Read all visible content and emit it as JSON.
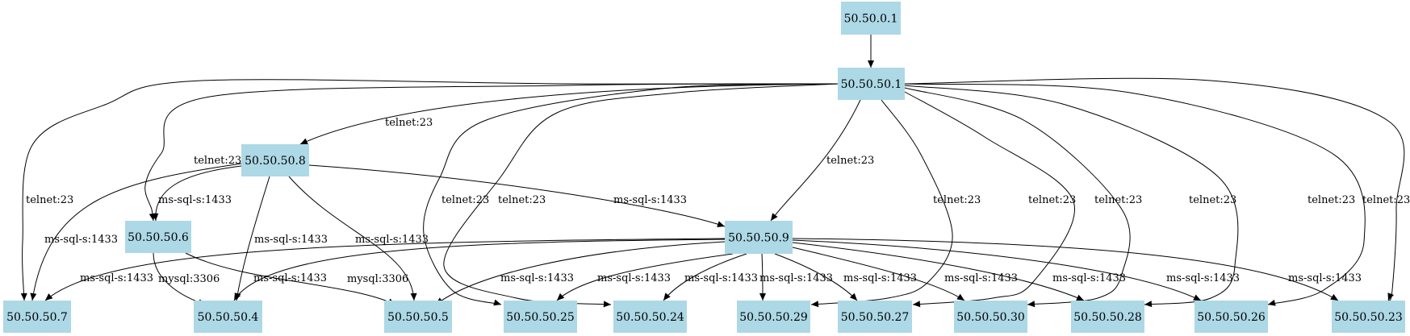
{
  "graph": {
    "nodes": [
      {
        "id": "n0101",
        "label": "50.50.0.1"
      },
      {
        "id": "n1",
        "label": "50.50.50.1"
      },
      {
        "id": "n8",
        "label": "50.50.50.8"
      },
      {
        "id": "n6",
        "label": "50.50.50.6"
      },
      {
        "id": "n9",
        "label": "50.50.50.9"
      },
      {
        "id": "n7",
        "label": "50.50.50.7"
      },
      {
        "id": "n4",
        "label": "50.50.50.4"
      },
      {
        "id": "n5",
        "label": "50.50.50.5"
      },
      {
        "id": "n25",
        "label": "50.50.50.25"
      },
      {
        "id": "n24",
        "label": "50.50.50.24"
      },
      {
        "id": "n29",
        "label": "50.50.50.29"
      },
      {
        "id": "n27",
        "label": "50.50.50.27"
      },
      {
        "id": "n30",
        "label": "50.50.50.30"
      },
      {
        "id": "n28",
        "label": "50.50.50.28"
      },
      {
        "id": "n26",
        "label": "50.50.50.26"
      },
      {
        "id": "n23",
        "label": "50.50.50.23"
      }
    ],
    "edges": [
      {
        "id": "e0",
        "from": "50.50.0.1",
        "to": "50.50.50.1",
        "label": ""
      },
      {
        "id": "e1",
        "from": "50.50.50.1",
        "to": "50.50.50.8",
        "label": "telnet:23"
      },
      {
        "id": "e2",
        "from": "50.50.50.1",
        "to": "50.50.50.6",
        "label": "telnet:23"
      },
      {
        "id": "e3",
        "from": "50.50.50.1",
        "to": "50.50.50.7",
        "label": "telnet:23"
      },
      {
        "id": "e4",
        "from": "50.50.50.1",
        "to": "50.50.50.25",
        "label": "telnet:23"
      },
      {
        "id": "e5",
        "from": "50.50.50.1",
        "to": "50.50.50.24",
        "label": "telnet:23"
      },
      {
        "id": "e6",
        "from": "50.50.50.1",
        "to": "50.50.50.9",
        "label": "telnet:23"
      },
      {
        "id": "e7",
        "from": "50.50.50.1",
        "to": "50.50.50.29",
        "label": "telnet:23"
      },
      {
        "id": "e8",
        "from": "50.50.50.1",
        "to": "50.50.50.27",
        "label": "telnet:23"
      },
      {
        "id": "e9",
        "from": "50.50.50.1",
        "to": "50.50.50.30",
        "label": "telnet:23"
      },
      {
        "id": "e10",
        "from": "50.50.50.1",
        "to": "50.50.50.28",
        "label": "telnet:23"
      },
      {
        "id": "e11",
        "from": "50.50.50.1",
        "to": "50.50.50.26",
        "label": "telnet:23"
      },
      {
        "id": "e12",
        "from": "50.50.50.1",
        "to": "50.50.50.23",
        "label": "telnet:23"
      },
      {
        "id": "e13",
        "from": "50.50.50.8",
        "to": "50.50.50.6",
        "label": "ms-sql-s:1433"
      },
      {
        "id": "e14",
        "from": "50.50.50.8",
        "to": "50.50.50.7",
        "label": "ms-sql-s:1433"
      },
      {
        "id": "e15",
        "from": "50.50.50.8",
        "to": "50.50.50.4",
        "label": "ms-sql-s:1433"
      },
      {
        "id": "e16",
        "from": "50.50.50.8",
        "to": "50.50.50.5",
        "label": "ms-sql-s:1433"
      },
      {
        "id": "e17",
        "from": "50.50.50.8",
        "to": "50.50.50.9",
        "label": "ms-sql-s:1433"
      },
      {
        "id": "e18",
        "from": "50.50.50.6",
        "to": "50.50.50.4",
        "label": "mysql:3306"
      },
      {
        "id": "e19",
        "from": "50.50.50.6",
        "to": "50.50.50.5",
        "label": "mysql:3306"
      },
      {
        "id": "e20",
        "from": "50.50.50.9",
        "to": "50.50.50.7",
        "label": "ms-sql-s:1433"
      },
      {
        "id": "e21",
        "from": "50.50.50.9",
        "to": "50.50.50.4",
        "label": "ms-sql-s:1433"
      },
      {
        "id": "e22",
        "from": "50.50.50.9",
        "to": "50.50.50.5",
        "label": "ms-sql-s:1433"
      },
      {
        "id": "e23",
        "from": "50.50.50.9",
        "to": "50.50.50.25",
        "label": "ms-sql-s:1433"
      },
      {
        "id": "e24",
        "from": "50.50.50.9",
        "to": "50.50.50.24",
        "label": "ms-sql-s:1433"
      },
      {
        "id": "e25",
        "from": "50.50.50.9",
        "to": "50.50.50.29",
        "label": "ms-sql-s:1433"
      },
      {
        "id": "e26",
        "from": "50.50.50.9",
        "to": "50.50.50.27",
        "label": "ms-sql-s:1433"
      },
      {
        "id": "e27",
        "from": "50.50.50.9",
        "to": "50.50.50.30",
        "label": "ms-sql-s:1433"
      },
      {
        "id": "e28",
        "from": "50.50.50.9",
        "to": "50.50.50.28",
        "label": "ms-sql-s:1433"
      },
      {
        "id": "e29",
        "from": "50.50.50.9",
        "to": "50.50.50.26",
        "label": "ms-sql-s:1433"
      },
      {
        "id": "e30",
        "from": "50.50.50.9",
        "to": "50.50.50.23",
        "label": "ms-sql-s:1433"
      }
    ]
  },
  "colors": {
    "node_fill": "#add8e6",
    "edge": "#000000",
    "background": "#ffffff"
  }
}
